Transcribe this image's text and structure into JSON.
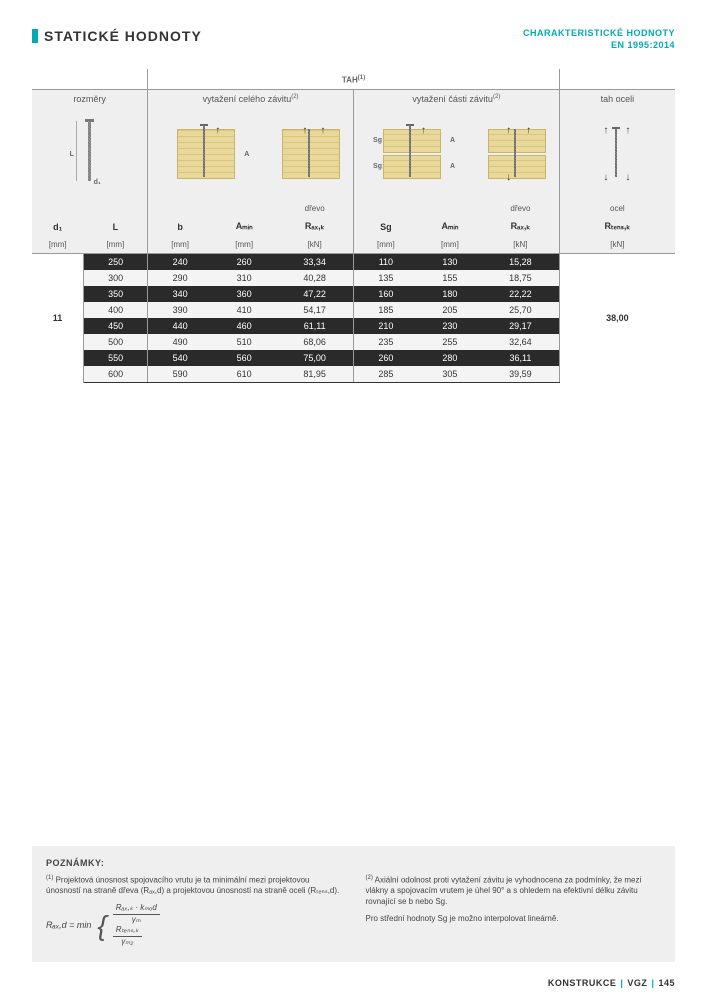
{
  "header": {
    "title": "STATICKÉ HODNOTY",
    "subtitle_line1": "CHARAKTERISTICKÉ HODNOTY",
    "subtitle_line2": "EN 1995:2014"
  },
  "table": {
    "tah_label": "TAH",
    "tah_sup": "(1)",
    "sections": {
      "dims": "rozměry",
      "full": "vytažení celého závitu",
      "part": "vytažení části závitu",
      "steel": "tah oceli",
      "sup2": "(2)"
    },
    "material": {
      "wood": "dřevo",
      "steel": "ocel"
    },
    "dim_labels": {
      "L": "L",
      "d1_small": "d₁",
      "A": "A",
      "Sg": "Sg"
    },
    "cols": {
      "d1": "d₁",
      "L": "L",
      "b": "b",
      "Amin1": "Aₘᵢₙ",
      "Raxk1": "Rₐₓ,ₖ",
      "Sg": "Sg",
      "Amin2": "Aₘᵢₙ",
      "Raxk2": "Rₐₓ,ₖ",
      "Rtensk": "Rₜₑₙₛ,ₖ"
    },
    "units": {
      "mm": "[mm]",
      "kN": "[kN]"
    },
    "d1_value": "11",
    "Rtens_value": "38,00",
    "rows": [
      {
        "L": "250",
        "b": "240",
        "Amin1": "260",
        "Raxk1": "33,34",
        "Sg": "110",
        "Amin2": "130",
        "Raxk2": "15,28"
      },
      {
        "L": "300",
        "b": "290",
        "Amin1": "310",
        "Raxk1": "40,28",
        "Sg": "135",
        "Amin2": "155",
        "Raxk2": "18,75"
      },
      {
        "L": "350",
        "b": "340",
        "Amin1": "360",
        "Raxk1": "47,22",
        "Sg": "160",
        "Amin2": "180",
        "Raxk2": "22,22"
      },
      {
        "L": "400",
        "b": "390",
        "Amin1": "410",
        "Raxk1": "54,17",
        "Sg": "185",
        "Amin2": "205",
        "Raxk2": "25,70"
      },
      {
        "L": "450",
        "b": "440",
        "Amin1": "460",
        "Raxk1": "61,11",
        "Sg": "210",
        "Amin2": "230",
        "Raxk2": "29,17"
      },
      {
        "L": "500",
        "b": "490",
        "Amin1": "510",
        "Raxk1": "68,06",
        "Sg": "235",
        "Amin2": "255",
        "Raxk2": "32,64"
      },
      {
        "L": "550",
        "b": "540",
        "Amin1": "560",
        "Raxk1": "75,00",
        "Sg": "260",
        "Amin2": "280",
        "Raxk2": "36,11"
      },
      {
        "L": "600",
        "b": "590",
        "Amin1": "610",
        "Raxk1": "81,95",
        "Sg": "285",
        "Amin2": "305",
        "Raxk2": "39,59"
      }
    ]
  },
  "notes": {
    "title": "POZNÁMKY:",
    "n1_sup": "(1)",
    "n1_text": "Projektová únosnost spojovacího vrutu je ta minimální mezi projektovou únosností na straně dřeva (Rₐₓ,d) a projektovou únosností na straně oceli (Rₜₑₙₛ,d).",
    "n2_sup": "(2)",
    "n2_text": "Axiální odolnost proti vytažení závitu je vyhodnocena za podmínky, že mezi vlákny a spojovacím vrutem je úhel 90° a s ohledem na efektivní délku závitu rovnající se b nebo Sg.",
    "n2_extra": "Pro střední hodnoty Sg je možno interpolovat lineárně.",
    "formula": {
      "lhs": "Rₐₓ,d = min",
      "f1_n": "Rₐₓ,ₖ · kₘₒd",
      "f1_d": "γₘ",
      "f2_n": "Rₜₑₙₛ,ₖ",
      "f2_d": "γₘ₂"
    }
  },
  "footer": {
    "a": "KONSTRUKCE",
    "b": "VGZ",
    "c": "145"
  }
}
